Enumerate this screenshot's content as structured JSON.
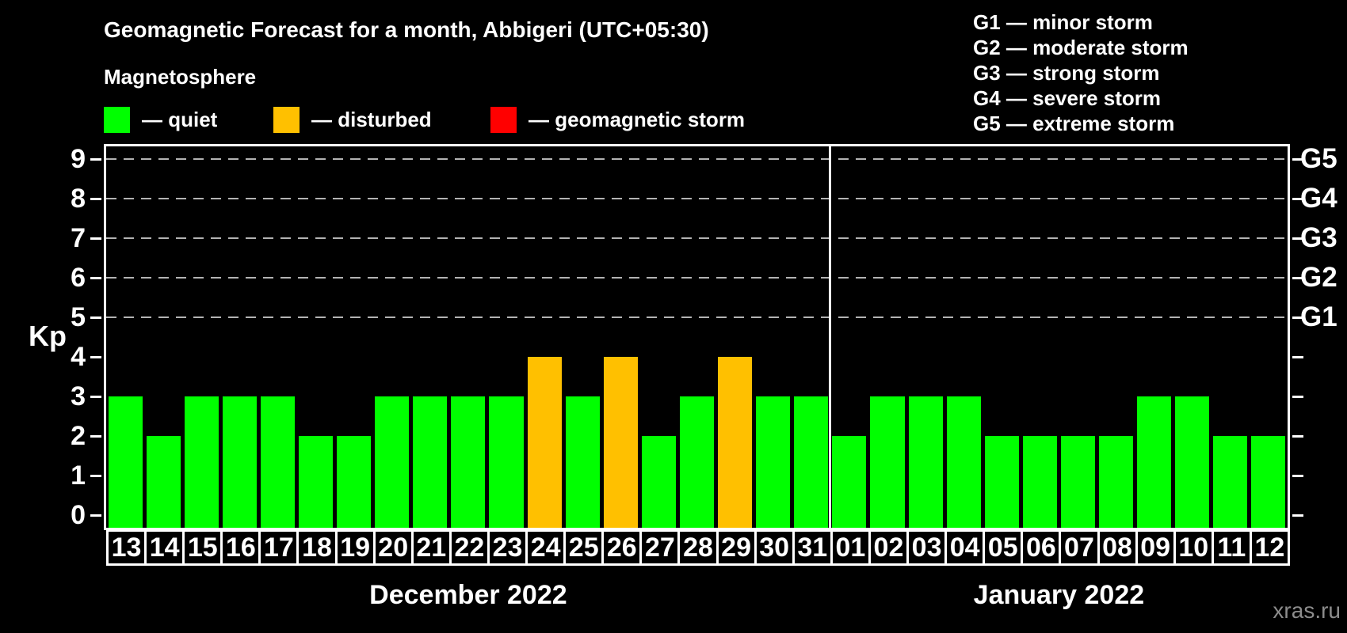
{
  "title": "Geomagnetic Forecast for a month, Abbigeri (UTC+05:30)",
  "subtitle": "Magnetosphere",
  "legend": {
    "items": [
      {
        "key": "quiet",
        "label": "— quiet",
        "color": "#00ff00"
      },
      {
        "key": "disturbed",
        "label": "— disturbed",
        "color": "#ffc000"
      },
      {
        "key": "storm",
        "label": "— geomagnetic storm",
        "color": "#ff0000"
      }
    ]
  },
  "g_scale_legend": [
    "G1 — minor storm",
    "G2 — moderate storm",
    "G3 — strong storm",
    "G4 — severe storm",
    "G5 — extreme storm"
  ],
  "watermark": "xras.ru",
  "chart_data": {
    "type": "bar",
    "title": "Geomagnetic Forecast for a month, Abbigeri (UTC+05:30)",
    "ylabel": "Kp",
    "ylim": [
      0,
      9
    ],
    "yticks": [
      0,
      1,
      2,
      3,
      4,
      5,
      6,
      7,
      8,
      9
    ],
    "gridlines_at_kp": [
      5,
      6,
      7,
      8,
      9
    ],
    "grid": "dashed horizontal lines only at Kp 5-9",
    "legend_position": "top-left",
    "right_axis_labels": [
      {
        "label": "G1",
        "kp": 5
      },
      {
        "label": "G2",
        "kp": 6
      },
      {
        "label": "G3",
        "kp": 7
      },
      {
        "label": "G4",
        "kp": 8
      },
      {
        "label": "G5",
        "kp": 9
      }
    ],
    "state_colors": {
      "quiet": "#00ff00",
      "disturbed": "#ffc000",
      "storm": "#ff0000"
    },
    "months": [
      {
        "label": "December 2022",
        "days": [
          "13",
          "14",
          "15",
          "16",
          "17",
          "18",
          "19",
          "20",
          "21",
          "22",
          "23",
          "24",
          "25",
          "26",
          "27",
          "28",
          "29",
          "30",
          "31"
        ],
        "kp": [
          3,
          2,
          3,
          3,
          3,
          2,
          2,
          3,
          3,
          3,
          3,
          4,
          3,
          4,
          2,
          3,
          4,
          3,
          3
        ],
        "state": [
          "quiet",
          "quiet",
          "quiet",
          "quiet",
          "quiet",
          "quiet",
          "quiet",
          "quiet",
          "quiet",
          "quiet",
          "quiet",
          "disturbed",
          "quiet",
          "disturbed",
          "quiet",
          "quiet",
          "disturbed",
          "quiet",
          "quiet"
        ]
      },
      {
        "label": "January 2022",
        "days": [
          "01",
          "02",
          "03",
          "04",
          "05",
          "06",
          "07",
          "08",
          "09",
          "10",
          "11",
          "12"
        ],
        "kp": [
          2,
          3,
          3,
          3,
          2,
          2,
          2,
          2,
          3,
          3,
          2,
          2
        ],
        "state": [
          "quiet",
          "quiet",
          "quiet",
          "quiet",
          "quiet",
          "quiet",
          "quiet",
          "quiet",
          "quiet",
          "quiet",
          "quiet",
          "quiet"
        ]
      }
    ]
  }
}
